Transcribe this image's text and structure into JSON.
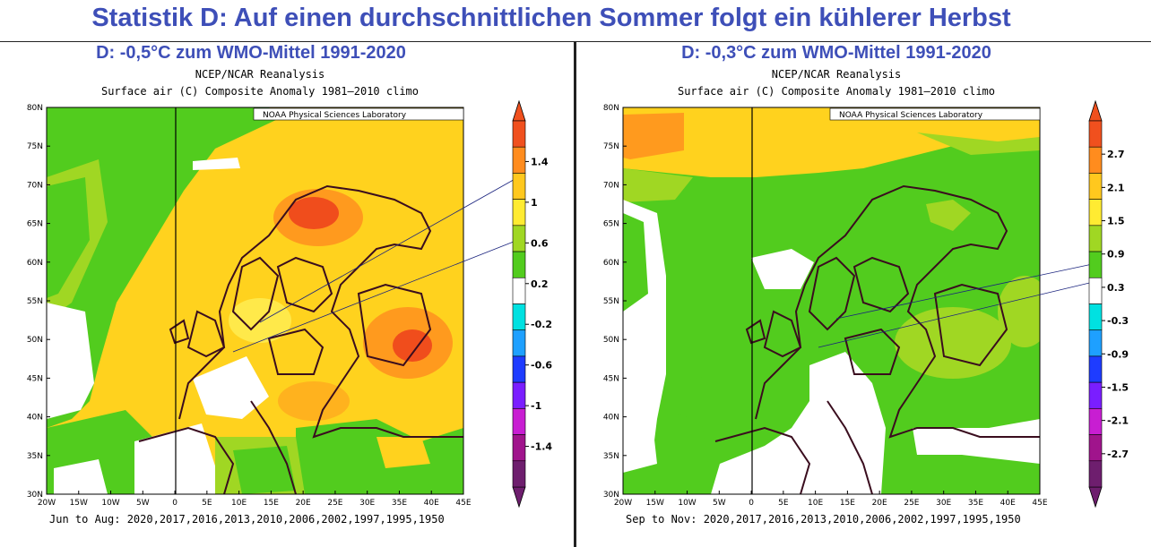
{
  "title": "Statistik D: Auf einen durchschnittlichen Sommer folgt ein kühlerer Herbst",
  "panels": [
    {
      "subtitle": "D: -0,5°C zum WMO-Mittel 1991-2020",
      "source": "NCEP/NCAR Reanalysis",
      "description": "Surface air (C) Composite Anomaly 1981–2010 climo",
      "badge": "NOAA Physical Sciences Laboratory",
      "footer": "Jun to Aug: 2020,2017,2016,2013,2010,2006,2002,1997,1995,1950",
      "colorbar_labels": [
        "1.4",
        "1",
        "0.6",
        "0.2",
        "-0.2",
        "-0.6",
        "-1",
        "-1.4"
      ],
      "dominant_anomaly": "warm",
      "colors": {
        "background": "#ffd21e",
        "hot": "#ff9a1e",
        "hotter": "#f04d1c"
      }
    },
    {
      "subtitle": "D: -0,3°C zum WMO-Mittel 1991-2020",
      "source": "NCEP/NCAR Reanalysis",
      "description": "Surface air (C) Composite Anomaly 1981–2010 climo",
      "badge": "NOAA Physical Sciences Laboratory",
      "footer": "Sep to Nov: 2020,2017,2016,2013,2010,2006,2002,1997,1995,1950",
      "colorbar_labels": [
        "2.7",
        "2.1",
        "1.5",
        "0.9",
        "0.3",
        "-0.3",
        "-0.9",
        "-1.5",
        "-2.1",
        "-2.7"
      ],
      "dominant_anomaly": "mild",
      "colors": {
        "background": "#52cc1e",
        "hot": "#a0d723",
        "hotter": "#ffd21e"
      }
    }
  ],
  "lat_labels": [
    "80N",
    "75N",
    "70N",
    "65N",
    "60N",
    "55N",
    "50N",
    "45N",
    "40N",
    "35N",
    "30N"
  ],
  "lon_labels": [
    "20W",
    "15W",
    "10W",
    "5W",
    "0",
    "5E",
    "10E",
    "15E",
    "20E",
    "25E",
    "30E",
    "35E",
    "40E",
    "45E"
  ],
  "colorbar_palette": [
    "#f0501e",
    "#ff8c1e",
    "#ffc81e",
    "#ffeb32",
    "#a0d723",
    "#52cc1e",
    "#ffffff",
    "#00e1e1",
    "#1ea0ff",
    "#1e3cff",
    "#7a1eff",
    "#c81ed2",
    "#a0148c",
    "#6e1e6e"
  ]
}
